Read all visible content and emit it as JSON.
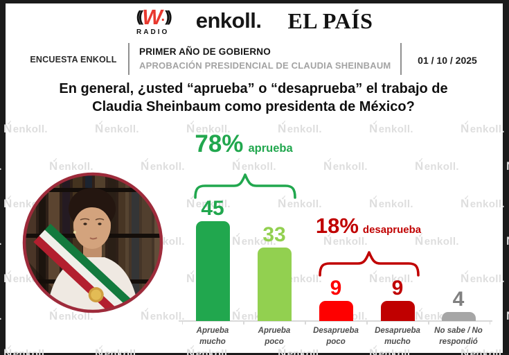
{
  "brand_bar": {
    "wradio": {
      "waves_left": "((",
      "mark": "W",
      "dot": ".",
      "waves_right": "))",
      "label": "RADIO"
    },
    "enkoll_logo": "enkoll.",
    "elpais_logo": "EL PAÍS"
  },
  "header": {
    "left_label": "ENCUESTA ENKOLL",
    "title": "PRIMER AÑO DE GOBIERNO",
    "subtitle": "APROBACIÓN PRESIDENCIAL DE CLAUDIA SHEINBAUM",
    "date": "01 / 10 / 2025"
  },
  "question": "En general, ¿usted “aprueba” o “desaprueba” el trabajo de\nClaudia Sheinbaum como presidenta de México?",
  "watermark": {
    "text": "enkoll.",
    "mark_letter": "N",
    "mark_check": "✓",
    "color": "#dedede"
  },
  "portrait": {
    "subject": "Claudia Sheinbaum",
    "border_color": "#9e2b3b"
  },
  "chart_data": {
    "type": "bar",
    "title": "En general, ¿usted “aprueba” o “desaprueba” el trabajo de Claudia Sheinbaum como presidenta de México?",
    "unit": "percent",
    "categories": [
      "Aprueba mucho",
      "Aprueba poco",
      "Desaprueba poco",
      "Desaprueba mucho",
      "No sabe / No respondió"
    ],
    "category_display": [
      "Aprueba\nmucho",
      "Aprueba\npoco",
      "Desaprueba\npoco",
      "Desaprueba\nmucho",
      "No sabe / No\nrespondió"
    ],
    "values": [
      45,
      33,
      9,
      9,
      4
    ],
    "bar_colors": [
      "#21a74e",
      "#92d050",
      "#fe0000",
      "#c00000",
      "#a6a6a6"
    ],
    "value_colors": [
      "#21a74e",
      "#92d050",
      "#fe0000",
      "#c00000",
      "#808080"
    ],
    "groups": [
      {
        "value": "78%",
        "label": "aprueba",
        "color": "#21a74e",
        "bars": [
          0,
          1
        ]
      },
      {
        "value": "18%",
        "label": "desaprueba",
        "color": "#c00000",
        "bars": [
          2,
          3
        ]
      }
    ],
    "ylim": [
      0,
      50
    ],
    "grid": false,
    "legend": "none",
    "xlabel": "",
    "ylabel": ""
  }
}
